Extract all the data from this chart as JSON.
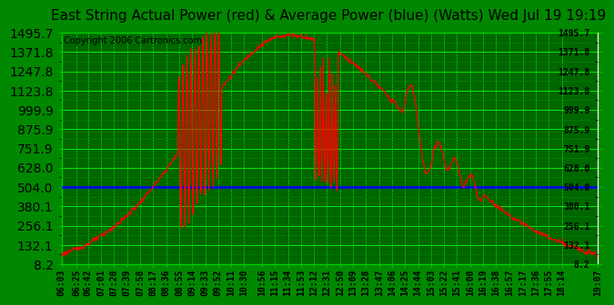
{
  "title": "East String Actual Power (red) & Average Power (blue) (Watts) Wed Jul 19 19:19",
  "copyright": "Copyright 2006 Cartronics.com",
  "line_color": "red",
  "avg_line_color": "blue",
  "avg_line_value": 504.0,
  "yticks": [
    8.2,
    132.1,
    256.1,
    380.1,
    504.0,
    628.0,
    751.9,
    875.9,
    999.9,
    1123.8,
    1247.8,
    1371.8,
    1495.7
  ],
  "xtick_labels": [
    "06:03",
    "06:25",
    "06:42",
    "07:01",
    "07:20",
    "07:39",
    "07:58",
    "08:17",
    "08:36",
    "08:55",
    "09:14",
    "09:33",
    "09:52",
    "10:11",
    "10:30",
    "10:56",
    "11:15",
    "11:34",
    "11:53",
    "12:12",
    "12:31",
    "12:50",
    "13:09",
    "13:28",
    "13:47",
    "14:06",
    "14:25",
    "14:44",
    "15:03",
    "15:22",
    "15:41",
    "16:00",
    "16:19",
    "16:38",
    "16:57",
    "17:17",
    "17:36",
    "17:55",
    "18:14",
    "19:07"
  ],
  "ylim": [
    8.2,
    1495.7
  ],
  "plot_bg": "#006600",
  "fig_bg": "#008800",
  "grid_major_color": "#00ff00",
  "grid_minor_color": "#009900",
  "title_fontsize": 11,
  "copyright_fontsize": 7,
  "tick_fontsize": 7,
  "line_width": 0.9
}
